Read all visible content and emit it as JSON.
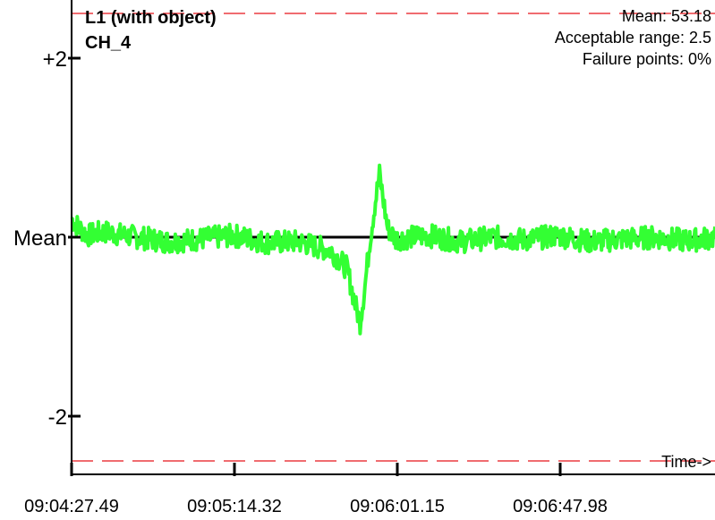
{
  "chart_data": {
    "type": "line",
    "title": "L1 (with object)",
    "subtitle": "CH_4",
    "stats": {
      "mean": "Mean: 53.18",
      "range": "Acceptable range: 2.5",
      "failure": "Failure points: 0%"
    },
    "y_ticks": [
      {
        "label": "+2",
        "value": 2
      },
      {
        "label": "Mean",
        "value": 0
      },
      {
        "label": "-2",
        "value": -2
      }
    ],
    "x_label": "Time->",
    "x_ticks": [
      "09:04:27.49",
      "09:05:14.32",
      "09:06:01.15",
      "09:06:47.98"
    ],
    "ylim": [
      -2.5,
      2.5
    ],
    "limits": [
      2.5,
      -2.5
    ],
    "series": [
      {
        "color": "#33ff33",
        "x": [
          0,
          5,
          10,
          20,
          40,
          60,
          80,
          100,
          120,
          140,
          150,
          160,
          170,
          175,
          178,
          181,
          184,
          187,
          190,
          195,
          200,
          220,
          240,
          260,
          280,
          300,
          320,
          340,
          360,
          380,
          397
        ],
        "y": [
          0.2,
          0.1,
          0.02,
          0.06,
          0.0,
          -0.05,
          -0.02,
          0.02,
          -0.06,
          -0.05,
          -0.1,
          -0.15,
          -0.35,
          -0.75,
          -0.95,
          -0.55,
          -0.05,
          0.35,
          0.7,
          0.1,
          -0.02,
          0.02,
          -0.05,
          0.0,
          -0.03,
          0.02,
          -0.05,
          -0.02,
          0.0,
          -0.04,
          0.0
        ]
      }
    ]
  }
}
